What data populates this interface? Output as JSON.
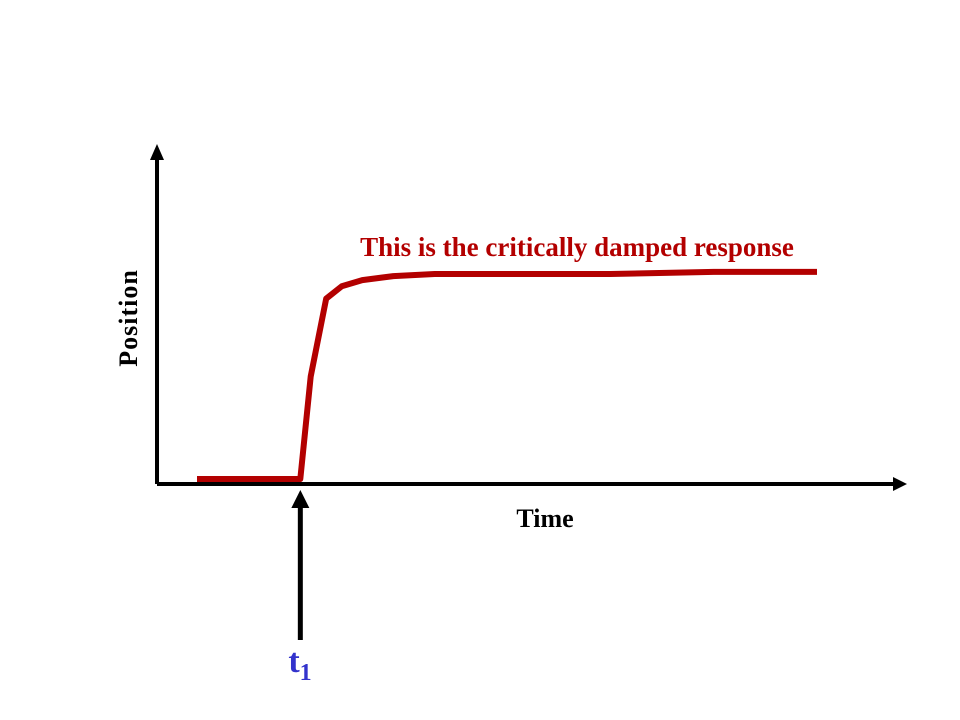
{
  "chart_data": {
    "type": "line",
    "xlabel": "Time",
    "ylabel": "Position",
    "grid": false,
    "series": [
      {
        "x": [
          0,
          1.0,
          1.1,
          1.25,
          1.4,
          1.6,
          1.9,
          2.3,
          3.0,
          4.0,
          5.0,
          6.0
        ],
        "y": [
          0,
          0,
          0.5,
          0.88,
          0.94,
          0.97,
          0.99,
          1.0,
          1.0,
          1.0,
          1.01,
          1.01
        ]
      }
    ],
    "annotations": [
      {
        "text": "This is the critically damped response",
        "color": "#b30000"
      }
    ],
    "marker": {
      "x": 1.0,
      "label_main": "t",
      "label_sub": "1",
      "color": "#3333cc"
    },
    "colors": {
      "line": "#b30000",
      "axes": "#000000",
      "marker_label": "#3333cc"
    }
  }
}
